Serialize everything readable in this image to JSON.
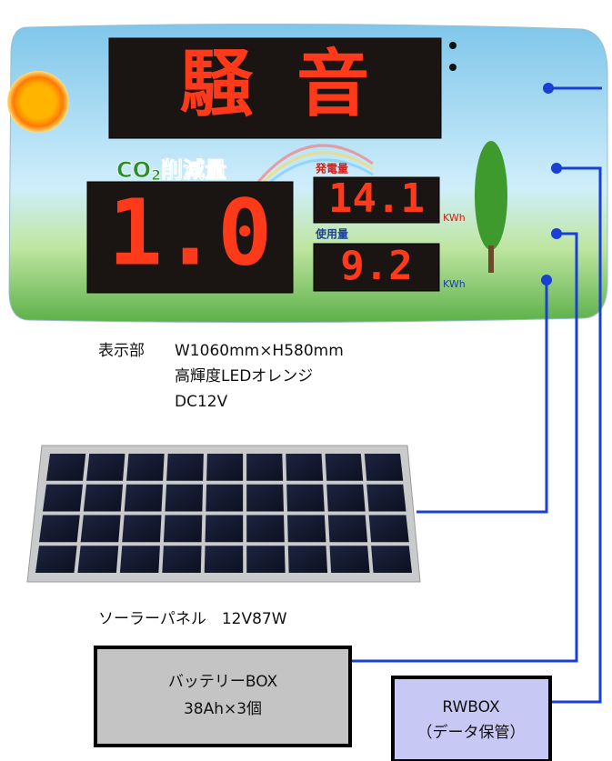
{
  "display": {
    "headline": "騒 音",
    "co2_label": {
      "prefix": "CO",
      "sub": "2",
      "suffix": "削減量"
    },
    "co2_value": "1.0",
    "generation": {
      "label": "発電量",
      "value": "14.1",
      "unit": "KWh"
    },
    "usage": {
      "label": "使用量",
      "value": "9.2",
      "unit": "KWh"
    }
  },
  "display_spec": {
    "name": "表示部",
    "lines": [
      "W1060mm×H580mm",
      "高輝度LEDオレンジ",
      "DC12V"
    ]
  },
  "solar_panel": {
    "caption": "ソーラーパネル　12V87W"
  },
  "battery_box": {
    "lines": [
      "バッテリーBOX",
      "38Ah×3個"
    ]
  },
  "rw_box": {
    "lines": [
      "RWBOX",
      "（データ保管）"
    ]
  }
}
